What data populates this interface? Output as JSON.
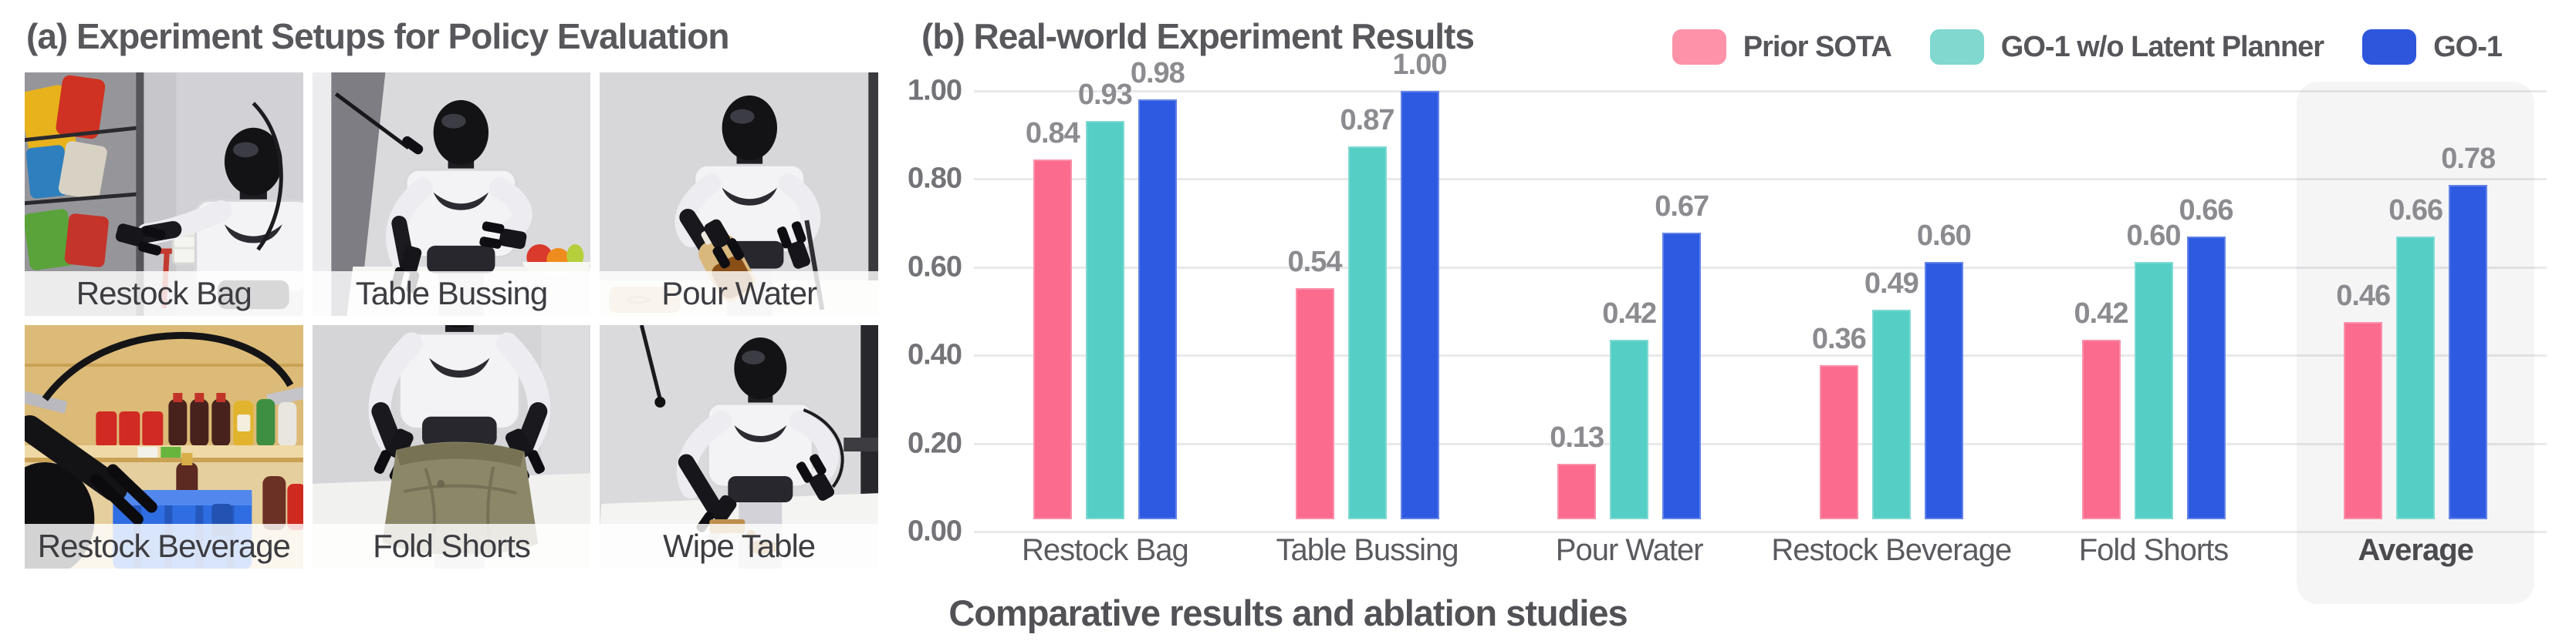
{
  "panel_a": {
    "title": "(a) Experiment Setups for Policy Evaluation",
    "photos": [
      {
        "label": "Restock Bag",
        "description": "humanoid robot picking snack bags from a rack into a shopping cart"
      },
      {
        "label": "Table Bussing",
        "description": "humanoid robot clearing a table with a fruit bowl"
      },
      {
        "label": "Pour Water",
        "description": "humanoid robot pouring liquid from a jug"
      },
      {
        "label": "Restock Beverage",
        "description": "robot gripper restocking drinks from a wooden shelf into a blue crate"
      },
      {
        "label": "Fold Shorts",
        "description": "humanoid robot folding khaki shorts on a table"
      },
      {
        "label": "Wipe Table",
        "description": "humanoid robot wiping a stain off a white table with a sponge"
      }
    ]
  },
  "panel_b": {
    "title": "(b) Real-world Experiment Results",
    "caption": "Comparative results and ablation studies"
  },
  "legend": {
    "position": "top-right",
    "items": [
      {
        "label": "Prior SOTA",
        "swatch_color": "#FD92A9"
      },
      {
        "label": "GO-1 w/o Latent Planner",
        "swatch_color": "#80D8CF"
      },
      {
        "label": "GO-1",
        "swatch_color": "#2E56DC"
      }
    ]
  },
  "chart_data": {
    "type": "bar",
    "title": "(b) Real-world Experiment Results",
    "categories": [
      "Restock Bag",
      "Table Bussing",
      "Pour Water",
      "Restock Beverage",
      "Fold Shorts",
      "Average"
    ],
    "series": [
      {
        "name": "Prior SOTA",
        "color": "#FB6B8E",
        "values": [
          0.84,
          0.54,
          0.13,
          0.36,
          0.42,
          0.46
        ]
      },
      {
        "name": "GO-1 w/o Latent Planner",
        "color": "#55CEC5",
        "values": [
          0.93,
          0.87,
          0.42,
          0.49,
          0.6,
          0.66
        ]
      },
      {
        "name": "GO-1",
        "color": "#2E5AE2",
        "values": [
          0.98,
          1.0,
          0.67,
          0.6,
          0.66,
          0.78
        ]
      }
    ],
    "xlabel": "",
    "ylabel": "",
    "ylim": [
      0,
      1.0
    ],
    "yticks": [
      "0.00",
      "0.20",
      "0.40",
      "0.60",
      "0.80",
      "1.00"
    ],
    "grid": true,
    "gridline_color": "#E9E9EB",
    "value_label_format": "0.00",
    "value_label_color": "#8B8B90",
    "highlighted_category": "Average",
    "highlight_color": "#F4F4F5",
    "legend_position": "top-right"
  }
}
